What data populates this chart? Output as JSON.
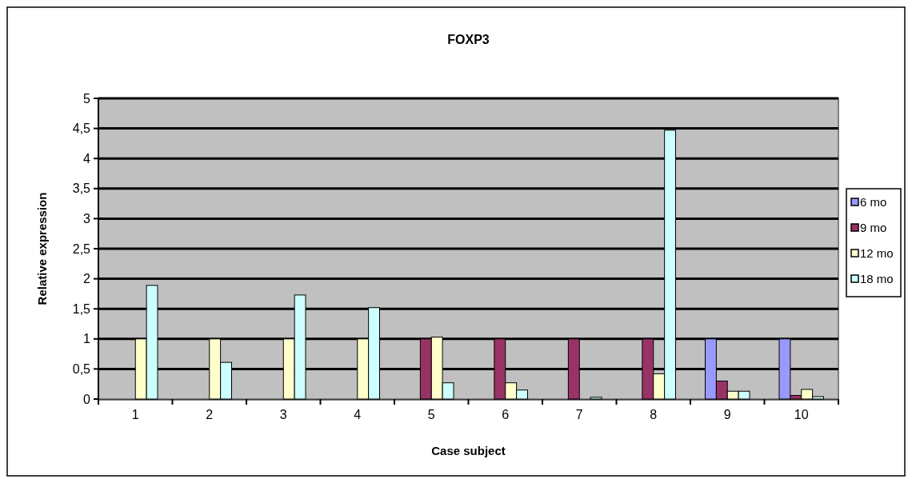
{
  "chart_data": {
    "type": "bar",
    "title": "FOXP3",
    "xlabel": "Case subject",
    "ylabel": "Relative expression",
    "categories": [
      "1",
      "2",
      "3",
      "4",
      "5",
      "6",
      "7",
      "8",
      "9",
      "10"
    ],
    "series": [
      {
        "name": "6 mo",
        "color": "#9999ff",
        "values": [
          null,
          null,
          null,
          null,
          null,
          null,
          null,
          null,
          1,
          1
        ]
      },
      {
        "name": "9 mo",
        "color": "#993366",
        "values": [
          null,
          null,
          null,
          null,
          1,
          1,
          1,
          1,
          0.3,
          0.06
        ]
      },
      {
        "name": "12 mo",
        "color": "#ffffcc",
        "values": [
          1,
          1,
          1,
          1,
          1.03,
          0.27,
          null,
          0.42,
          0.13,
          0.16
        ]
      },
      {
        "name": "18 mo",
        "color": "#ccffff",
        "values": [
          1.89,
          0.61,
          1.73,
          1.52,
          0.27,
          0.15,
          0.03,
          4.47,
          0.13,
          0.04
        ]
      }
    ],
    "ylim": [
      0,
      5
    ],
    "yticks": [
      0,
      {
        "value": 0.5,
        "label": "0,5"
      },
      1,
      {
        "value": 1.5,
        "label": "1,5"
      },
      2,
      {
        "value": 2.5,
        "label": "2,5"
      },
      3,
      {
        "value": 3.5,
        "label": "3,5"
      },
      4,
      {
        "value": 4.5,
        "label": "4,5"
      },
      5
    ],
    "grid": "y",
    "legend": "right"
  }
}
